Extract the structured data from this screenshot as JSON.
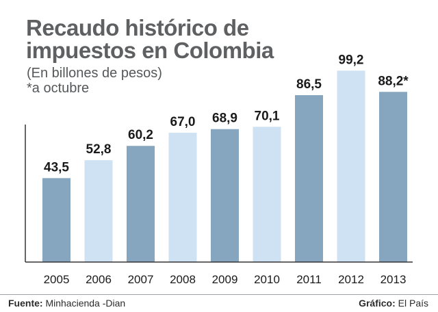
{
  "title_line1": "Recaudo histórico de",
  "title_line2": "impuestos en Colombia",
  "subtitle_line1": "(En billones de pesos)",
  "subtitle_line2": "*a octubre",
  "footer": {
    "source_label": "Fuente:",
    "source_value": "Minhacienda -Dian",
    "credit_label": "Gráfico:",
    "credit_value": "El País"
  },
  "colors": {
    "dark_bar": "#86a5bf",
    "light_bar": "#cfe2f3",
    "axis": "#333333",
    "label": "#1a1a1a",
    "title": "#5f6062"
  },
  "chart_data": {
    "type": "bar",
    "categories": [
      "2005",
      "2006",
      "2007",
      "2008",
      "2009",
      "2010",
      "2011",
      "2012",
      "2013"
    ],
    "values": [
      43.5,
      52.8,
      60.2,
      67.0,
      68.9,
      70.1,
      86.5,
      99.2,
      88.2
    ],
    "value_labels": [
      "43,5",
      "52,8",
      "60,2",
      "67,0",
      "68,9",
      "70,1",
      "86,5",
      "99,2",
      "88,2*"
    ],
    "bar_tones": [
      "dark",
      "light",
      "dark",
      "light",
      "dark",
      "light",
      "dark",
      "light",
      "dark"
    ],
    "ylim": [
      0,
      100
    ],
    "grid": false
  }
}
